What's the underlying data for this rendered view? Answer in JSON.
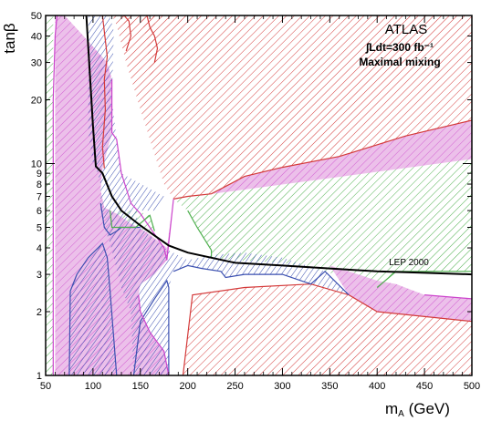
{
  "chart_data": {
    "type": "area",
    "title": "ATLAS",
    "annotations": {
      "luminosity": "∫Ldt=300 fb⁻¹",
      "scenario": "Maximal mixing",
      "lep_curve_label": "LEP 2000"
    },
    "xlabel": "mₐ (GeV)",
    "xlabel_main": "m",
    "xlabel_sub": "A",
    "xlabel_unit": " (GeV)",
    "ylabel": "tanβ",
    "xlim": [
      50,
      500
    ],
    "ylim": [
      1,
      50
    ],
    "yscale": "log",
    "x_ticks": [
      50,
      100,
      150,
      200,
      250,
      300,
      350,
      400,
      450,
      500
    ],
    "y_ticks": [
      1,
      2,
      3,
      4,
      5,
      6,
      7,
      8,
      9,
      10,
      20,
      30,
      40,
      50
    ],
    "colors": {
      "red": "#d43a3a",
      "blue": "#3a4fb0",
      "green": "#4fb04f",
      "magenta": "#cc44cc",
      "pink_fill": "#ecc0ea",
      "lep": "#000000"
    },
    "regions": [
      {
        "color": "green",
        "polygons": [
          [
            [
              50,
              50
            ],
            [
              58,
              50
            ],
            [
              58,
              1
            ],
            [
              50,
              1
            ]
          ],
          [
            [
              185,
              6.8
            ],
            [
              500,
              10.5
            ],
            [
              500,
              3.1
            ],
            [
              420,
              3.1
            ],
            [
              400,
              2.6
            ],
            [
              345,
              3.1
            ],
            [
              300,
              3.4
            ],
            [
              250,
              3.5
            ],
            [
              225,
              3.6
            ],
            [
              225,
              3.9
            ],
            [
              210,
              5.0
            ],
            [
              200,
              6.0
            ]
          ],
          [
            [
              118,
              6.0
            ],
            [
              145,
              6.0
            ],
            [
              160,
              5.7
            ],
            [
              165,
              4.8
            ],
            [
              120,
              5.0
            ]
          ]
        ]
      },
      {
        "color": "red",
        "polygons": [
          [
            [
              100,
              50
            ],
            [
              500,
              50
            ],
            [
              500,
              16
            ],
            [
              430,
              13.5
            ],
            [
              360,
              10.8
            ],
            [
              300,
              9.6
            ],
            [
              260,
              8.7
            ],
            [
              225,
              7.2
            ],
            [
              185,
              6.8
            ],
            [
              175,
              8.0
            ],
            [
              150,
              18
            ],
            [
              135,
              30
            ],
            [
              125,
              45
            ],
            [
              120,
              50
            ]
          ],
          [
            [
              205,
              2.4
            ],
            [
              260,
              2.6
            ],
            [
              330,
              2.7
            ],
            [
              370,
              2.4
            ],
            [
              400,
              2.0
            ],
            [
              500,
              1.8
            ],
            [
              500,
              1
            ],
            [
              195,
              1
            ]
          ],
          [
            [
              150,
              50
            ],
            [
              165,
              50
            ],
            [
              168,
              30
            ],
            [
              160,
              25
            ],
            [
              157,
              38
            ]
          ],
          [
            [
              130,
              50
            ],
            [
              145,
              50
            ],
            [
              140,
              43
            ],
            [
              133,
              45
            ]
          ]
        ]
      },
      {
        "color": "magenta",
        "polygons": [
          [
            [
              60,
              50
            ],
            [
              70,
              50
            ],
            [
              90,
              40
            ],
            [
              115,
              30
            ],
            [
              120,
              25
            ],
            [
              120,
              14
            ],
            [
              110,
              9.5
            ],
            [
              108,
              7.5
            ],
            [
              112,
              6.2
            ],
            [
              125,
              5.8
            ],
            [
              140,
              5.2
            ],
            [
              155,
              4.8
            ],
            [
              178,
              4.0
            ],
            [
              185,
              6.8
            ],
            [
              225,
              7.2
            ],
            [
              260,
              8.7
            ],
            [
              300,
              9.6
            ],
            [
              360,
              10.8
            ],
            [
              430,
              13.5
            ],
            [
              500,
              16
            ],
            [
              500,
              10.5
            ],
            [
              185,
              6.8
            ],
            [
              178,
              3.5
            ],
            [
              165,
              3.0
            ],
            [
              150,
              2.7
            ],
            [
              148,
              2.4
            ],
            [
              150,
              2.0
            ],
            [
              160,
              1.6
            ],
            [
              175,
              1.3
            ],
            [
              180,
              1
            ],
            [
              60,
              1
            ]
          ],
          [
            [
              350,
              3.3
            ],
            [
              370,
              2.4
            ],
            [
              400,
              2.0
            ],
            [
              500,
              1.8
            ],
            [
              500,
              2.3
            ],
            [
              450,
              2.4
            ],
            [
              420,
              2.7
            ],
            [
              400,
              2.8
            ],
            [
              370,
              3.1
            ]
          ]
        ]
      },
      {
        "color": "blue",
        "polygons": [
          [
            [
              95,
              50
            ],
            [
              118,
              50
            ],
            [
              122,
              42
            ],
            [
              120,
              20
            ],
            [
              125,
              13
            ],
            [
              130,
              9
            ],
            [
              170,
              7.2
            ],
            [
              178,
              6.9
            ],
            [
              168,
              6.0
            ],
            [
              148,
              6.0
            ],
            [
              145,
              5.8
            ],
            [
              150,
              5.0
            ],
            [
              175,
              4.0
            ],
            [
              200,
              3.5
            ],
            [
              225,
              3.7
            ],
            [
              260,
              3.8
            ],
            [
              300,
              3.6
            ],
            [
              345,
              3.1
            ],
            [
              370,
              2.4
            ],
            [
              330,
              2.7
            ],
            [
              300,
              3.0
            ],
            [
              260,
              3.0
            ],
            [
              240,
              2.9
            ],
            [
              235,
              3.1
            ],
            [
              215,
              3.2
            ],
            [
              200,
              3.3
            ],
            [
              185,
              3.1
            ],
            [
              180,
              2.6
            ],
            [
              180,
              1
            ],
            [
              143,
              1
            ],
            [
              140,
              2.0
            ],
            [
              130,
              2.6
            ],
            [
              118,
              4.2
            ],
            [
              112,
              5.0
            ],
            [
              108,
              6.5
            ],
            [
              108,
              8.0
            ],
            [
              105,
              9.0
            ],
            [
              100,
              10
            ],
            [
              95,
              14
            ]
          ],
          [
            [
              75,
              1
            ],
            [
              125,
              1
            ],
            [
              118,
              2.5
            ],
            [
              115,
              3.6
            ],
            [
              110,
              4.2
            ],
            [
              95,
              3.6
            ],
            [
              83,
              3.0
            ],
            [
              76,
              2.5
            ],
            [
              75,
              2
            ]
          ]
        ]
      }
    ],
    "lep_curve": {
      "x": [
        93,
        96,
        100,
        103,
        110,
        120,
        130,
        150,
        180,
        200,
        250,
        300,
        350,
        400,
        450,
        500
      ],
      "y": [
        50,
        30,
        15,
        9.7,
        9.0,
        7.0,
        6.0,
        5.1,
        4.1,
        3.8,
        3.4,
        3.3,
        3.2,
        3.1,
        3.05,
        3.0
      ]
    },
    "boundaries": [
      {
        "color": "red",
        "x": [
          110,
          112,
          115,
          112,
          113,
          110,
          112
        ],
        "y": [
          50,
          42,
          32,
          25,
          18,
          12,
          9.5
        ]
      },
      {
        "color": "red",
        "x": [
          133,
          138,
          140,
          135
        ],
        "y": [
          50,
          47,
          40,
          34
        ]
      },
      {
        "color": "red",
        "x": [
          157,
          160,
          165,
          168,
          165
        ],
        "y": [
          50,
          44,
          40,
          35,
          30
        ]
      },
      {
        "color": "red",
        "x": [
          185,
          200,
          225,
          260,
          300,
          360,
          430,
          500
        ],
        "y": [
          6.8,
          7.0,
          7.2,
          8.7,
          9.6,
          10.8,
          13.5,
          16
        ]
      },
      {
        "color": "red",
        "x": [
          195,
          205,
          260,
          330,
          370,
          400,
          500
        ],
        "y": [
          1,
          2.4,
          2.6,
          2.7,
          2.4,
          2.0,
          1.8
        ]
      },
      {
        "color": "blue",
        "x": [
          75,
          76,
          83,
          95,
          110,
          115,
          118,
          125
        ],
        "y": [
          1,
          2.5,
          3.0,
          3.6,
          4.2,
          3.6,
          2.5,
          1
        ]
      },
      {
        "color": "blue",
        "x": [
          143,
          150,
          165,
          178,
          180,
          180
        ],
        "y": [
          1,
          1.8,
          2.3,
          2.8,
          2.6,
          1
        ]
      },
      {
        "color": "blue",
        "x": [
          108,
          112,
          118,
          125,
          130,
          150
        ],
        "y": [
          6.5,
          5.0,
          4.6,
          4.8,
          5.0,
          5.0
        ]
      },
      {
        "color": "blue",
        "x": [
          185,
          200,
          215,
          235,
          240,
          260,
          300,
          330,
          345,
          370
        ],
        "y": [
          3.1,
          3.3,
          3.2,
          3.1,
          2.9,
          3.0,
          3.0,
          2.7,
          3.1,
          2.4
        ]
      },
      {
        "color": "magenta",
        "x": [
          58,
          58,
          60,
          62
        ],
        "y": [
          1,
          20,
          40,
          50
        ]
      },
      {
        "color": "magenta",
        "x": [
          120,
          120,
          125,
          130,
          140,
          150,
          175,
          178,
          185
        ],
        "y": [
          25,
          14,
          13,
          9,
          6.5,
          5.8,
          4.0,
          3.5,
          6.8
        ]
      },
      {
        "color": "magenta",
        "x": [
          148,
          150,
          160,
          175,
          180
        ],
        "y": [
          2.4,
          2.0,
          1.6,
          1.3,
          1
        ]
      },
      {
        "color": "magenta",
        "x": [
          450,
          500
        ],
        "y": [
          2.4,
          2.3
        ]
      },
      {
        "color": "green",
        "x": [
          118,
          120,
          145,
          160,
          165
        ],
        "y": [
          6.0,
          5.0,
          5.0,
          5.7,
          4.8
        ]
      },
      {
        "color": "green",
        "x": [
          200,
          210,
          225,
          225
        ],
        "y": [
          6.0,
          5.0,
          3.9,
          3.6
        ]
      },
      {
        "color": "green",
        "x": [
          400,
          420,
          500
        ],
        "y": [
          2.6,
          3.1,
          3.1
        ]
      }
    ]
  }
}
